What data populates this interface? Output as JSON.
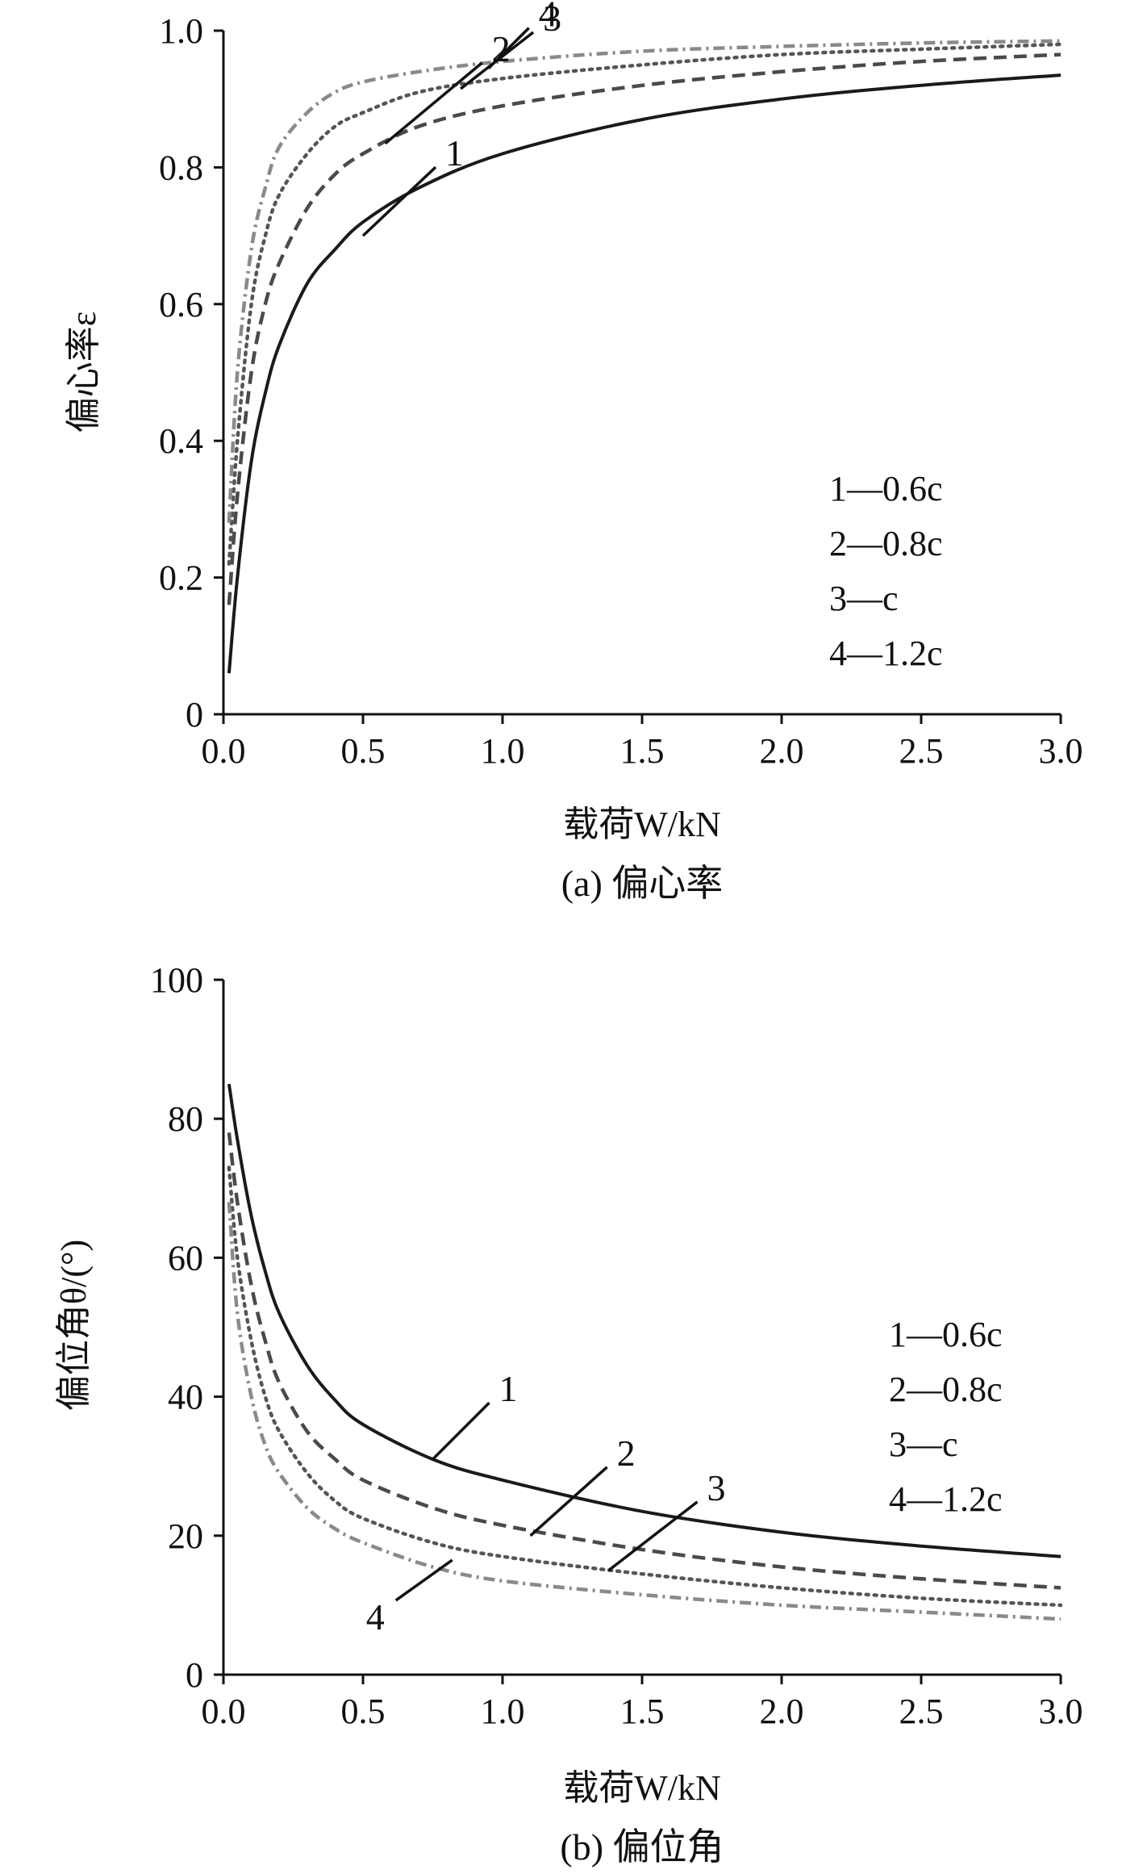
{
  "chart_data": [
    {
      "type": "line",
      "panel": "a",
      "caption": "(a) 偏心率",
      "xlabel": "载荷W/kN",
      "ylabel": "偏心率ε",
      "xlim": [
        0.0,
        3.0
      ],
      "ylim": [
        0,
        1.0
      ],
      "xticks": [
        "0.0",
        "0.5",
        "1.0",
        "1.5",
        "2.0",
        "2.5",
        "3.0"
      ],
      "yticks": [
        "0",
        "0.2",
        "0.4",
        "0.6",
        "0.8",
        "1.0"
      ],
      "grid": false,
      "legend_position": "middle-right",
      "legend": [
        "1—0.6c",
        "2—0.8c",
        "3—c",
        "4—1.2c"
      ],
      "series": [
        {
          "name": "1—0.6c",
          "label": "1",
          "style": "solid",
          "x": [
            0.02,
            0.05,
            0.1,
            0.15,
            0.2,
            0.3,
            0.4,
            0.5,
            0.7,
            1.0,
            1.5,
            2.0,
            2.5,
            3.0
          ],
          "y": [
            0.06,
            0.2,
            0.37,
            0.47,
            0.54,
            0.63,
            0.68,
            0.72,
            0.77,
            0.82,
            0.87,
            0.9,
            0.92,
            0.935
          ]
        },
        {
          "name": "2—0.8c",
          "label": "2",
          "style": "dashed",
          "x": [
            0.02,
            0.05,
            0.1,
            0.15,
            0.2,
            0.3,
            0.4,
            0.5,
            0.7,
            1.0,
            1.5,
            2.0,
            2.5,
            3.0
          ],
          "y": [
            0.16,
            0.32,
            0.5,
            0.6,
            0.66,
            0.74,
            0.79,
            0.82,
            0.86,
            0.89,
            0.92,
            0.94,
            0.955,
            0.965
          ]
        },
        {
          "name": "3—c",
          "label": "3",
          "style": "dotted",
          "x": [
            0.02,
            0.05,
            0.1,
            0.15,
            0.2,
            0.3,
            0.4,
            0.5,
            0.7,
            1.0,
            1.5,
            2.0,
            2.5,
            3.0
          ],
          "y": [
            0.22,
            0.4,
            0.6,
            0.7,
            0.76,
            0.82,
            0.86,
            0.88,
            0.91,
            0.93,
            0.95,
            0.965,
            0.973,
            0.98
          ]
        },
        {
          "name": "4—1.2c",
          "label": "4",
          "style": "dashdot",
          "x": [
            0.02,
            0.05,
            0.1,
            0.15,
            0.2,
            0.3,
            0.4,
            0.5,
            0.7,
            1.0,
            1.5,
            2.0,
            2.5,
            3.0
          ],
          "y": [
            0.28,
            0.5,
            0.68,
            0.77,
            0.83,
            0.88,
            0.91,
            0.925,
            0.94,
            0.955,
            0.97,
            0.977,
            0.982,
            0.985
          ]
        }
      ],
      "callouts": [
        {
          "label": "1",
          "x": 0.5,
          "y": 0.7
        },
        {
          "label": "2",
          "x": 0.58,
          "y": 0.835
        },
        {
          "label": "3",
          "x": 0.85,
          "y": 0.915
        },
        {
          "label": "4",
          "x": 0.95,
          "y": 0.945
        }
      ]
    },
    {
      "type": "line",
      "panel": "b",
      "caption": "(b) 偏位角",
      "xlabel": "载荷W/kN",
      "ylabel": "偏位角θ/(°)",
      "xlim": [
        0.0,
        3.0
      ],
      "ylim": [
        0,
        100
      ],
      "xticks": [
        "0.0",
        "0.5",
        "1.0",
        "1.5",
        "2.0",
        "2.5",
        "3.0"
      ],
      "yticks": [
        "0",
        "20",
        "40",
        "60",
        "80",
        "100"
      ],
      "grid": false,
      "legend_position": "middle-right",
      "legend": [
        "1—0.6c",
        "2—0.8c",
        "3—c",
        "4—1.2c"
      ],
      "series": [
        {
          "name": "1—0.6c",
          "label": "1",
          "style": "solid",
          "x": [
            0.02,
            0.05,
            0.1,
            0.15,
            0.2,
            0.3,
            0.4,
            0.5,
            0.75,
            1.0,
            1.5,
            2.0,
            2.5,
            3.0
          ],
          "y": [
            85,
            77,
            66,
            58,
            52,
            44.5,
            39.5,
            36,
            31,
            28,
            23.5,
            20.5,
            18.5,
            17
          ]
        },
        {
          "name": "2—0.8c",
          "label": "2",
          "style": "dashed",
          "x": [
            0.02,
            0.05,
            0.1,
            0.15,
            0.2,
            0.3,
            0.4,
            0.5,
            0.75,
            1.0,
            1.5,
            2.0,
            2.5,
            3.0
          ],
          "y": [
            78,
            68,
            56,
            48,
            42,
            35,
            31,
            28,
            24,
            21.5,
            18,
            15.5,
            13.8,
            12.5
          ]
        },
        {
          "name": "3—c",
          "label": "3",
          "style": "dotted",
          "x": [
            0.02,
            0.05,
            0.1,
            0.15,
            0.2,
            0.3,
            0.4,
            0.5,
            0.75,
            1.0,
            1.5,
            2.0,
            2.5,
            3.0
          ],
          "y": [
            73,
            60,
            48,
            40,
            35,
            29,
            25,
            22.5,
            19,
            17,
            14.5,
            12.5,
            11,
            10
          ]
        },
        {
          "name": "4—1.2c",
          "label": "4",
          "style": "dashdot",
          "x": [
            0.02,
            0.05,
            0.1,
            0.15,
            0.2,
            0.3,
            0.4,
            0.5,
            0.75,
            1.0,
            1.5,
            2.0,
            2.5,
            3.0
          ],
          "y": [
            68,
            52,
            40,
            33,
            29,
            24,
            21,
            19,
            15.5,
            13.5,
            11.5,
            10,
            9,
            8
          ]
        }
      ],
      "callouts": [
        {
          "label": "1",
          "x": 0.75,
          "y": 31
        },
        {
          "label": "2",
          "x": 1.1,
          "y": 20
        },
        {
          "label": "3",
          "x": 1.38,
          "y": 15
        },
        {
          "label": "4",
          "x": 0.82,
          "y": 16.5
        }
      ]
    }
  ]
}
